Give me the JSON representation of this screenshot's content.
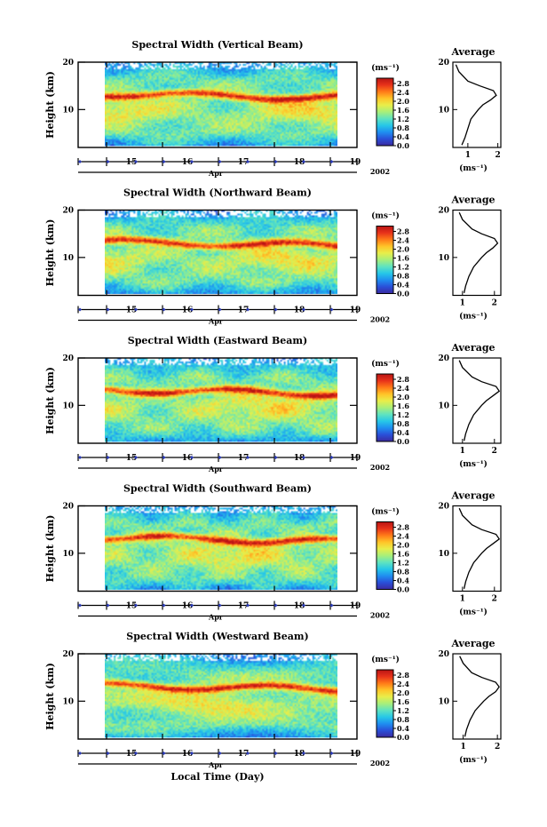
{
  "figure": {
    "xlabel": "Local Time (Day)",
    "colorbar_unit": "(ms⁻¹)",
    "avg_title": "Average",
    "avg_unit": "(ms⁻¹)",
    "month_label": "Apr",
    "year_label": "2002",
    "ylabel": "Height (km)",
    "colormap": [
      "#3b2aa0",
      "#2a4fd8",
      "#1f8ef0",
      "#26c7e8",
      "#5fe3c0",
      "#a8ef7a",
      "#e8ee4a",
      "#ffc428",
      "#ff7a18",
      "#e8321a",
      "#b81414"
    ]
  },
  "chart_data": [
    {
      "type": "heatmap",
      "title": "Spectral Width (Vertical Beam)",
      "ylabel": "Height (km)",
      "yticks": [
        10,
        20
      ],
      "ylim": [
        2,
        20
      ],
      "xticks": [
        "15",
        "16",
        "17",
        "18",
        "19"
      ],
      "colorbar": {
        "ticks": [
          "0.0",
          "0.4",
          "0.8",
          "1.2",
          "1.6",
          "2.0",
          "2.4",
          "2.8"
        ],
        "range": [
          0,
          2.8
        ]
      },
      "profile": {
        "xticks": [
          "1",
          "2"
        ],
        "xlim": [
          0.5,
          2.1
        ],
        "yticks": [
          "10",
          "20"
        ],
        "heights": [
          2.5,
          4,
          6,
          8,
          10,
          11,
          12,
          13,
          14,
          15,
          16,
          18,
          19.5
        ],
        "values": [
          0.8,
          0.9,
          1.0,
          1.1,
          1.35,
          1.5,
          1.75,
          1.95,
          1.85,
          1.4,
          1.0,
          0.7,
          0.6
        ]
      }
    },
    {
      "type": "heatmap",
      "title": "Spectral Width (Northward Beam)",
      "ylabel": "Height (km)",
      "yticks": [
        10,
        20
      ],
      "ylim": [
        2,
        20
      ],
      "xticks": [
        "15",
        "16",
        "17",
        "18",
        "19"
      ],
      "colorbar": {
        "ticks": [
          "0.0",
          "0.4",
          "0.8",
          "1.2",
          "1.6",
          "2.0",
          "2.4",
          "2.8"
        ],
        "range": [
          0,
          2.8
        ]
      },
      "profile": {
        "xticks": [
          "1",
          "2"
        ],
        "xlim": [
          0.7,
          2.2
        ],
        "yticks": [
          "10",
          "20"
        ],
        "heights": [
          2.5,
          4,
          6,
          8,
          10,
          11,
          12,
          13,
          14,
          15,
          16,
          18,
          19.5
        ],
        "values": [
          1.05,
          1.1,
          1.2,
          1.35,
          1.6,
          1.75,
          1.95,
          2.1,
          2.0,
          1.6,
          1.3,
          1.0,
          0.9
        ]
      }
    },
    {
      "type": "heatmap",
      "title": "Spectral Width (Eastward Beam)",
      "ylabel": "Height (km)",
      "yticks": [
        10,
        20
      ],
      "ylim": [
        2,
        20
      ],
      "xticks": [
        "15",
        "16",
        "17",
        "18",
        "19"
      ],
      "colorbar": {
        "ticks": [
          "0.0",
          "0.4",
          "0.8",
          "1.2",
          "1.6",
          "2.0",
          "2.4",
          "2.8"
        ],
        "range": [
          0,
          2.8
        ]
      },
      "profile": {
        "xticks": [
          "1",
          "2"
        ],
        "xlim": [
          0.7,
          2.2
        ],
        "yticks": [
          "10",
          "20"
        ],
        "heights": [
          2.5,
          4,
          6,
          8,
          10,
          11,
          12,
          13,
          14,
          15,
          16,
          18,
          19.5
        ],
        "values": [
          1.05,
          1.1,
          1.2,
          1.35,
          1.6,
          1.75,
          1.95,
          2.15,
          2.05,
          1.6,
          1.3,
          1.0,
          0.9
        ]
      }
    },
    {
      "type": "heatmap",
      "title": "Spectral Width (Southward Beam)",
      "ylabel": "Height (km)",
      "yticks": [
        10,
        20
      ],
      "ylim": [
        2,
        20
      ],
      "xticks": [
        "15",
        "16",
        "17",
        "18",
        "19"
      ],
      "colorbar": {
        "ticks": [
          "0.0",
          "0.4",
          "0.8",
          "1.2",
          "1.6",
          "2.0",
          "2.4",
          "2.8"
        ],
        "range": [
          0,
          2.8
        ]
      },
      "profile": {
        "xticks": [
          "1",
          "2"
        ],
        "xlim": [
          0.7,
          2.2
        ],
        "yticks": [
          "10",
          "20"
        ],
        "heights": [
          2.5,
          4,
          6,
          8,
          10,
          11,
          12,
          13,
          14,
          15,
          16,
          18,
          19.5
        ],
        "values": [
          1.05,
          1.1,
          1.2,
          1.35,
          1.6,
          1.75,
          1.95,
          2.15,
          2.05,
          1.6,
          1.3,
          1.0,
          0.9
        ]
      }
    },
    {
      "type": "heatmap",
      "title": "Spectral Width (Westward Beam)",
      "ylabel": "Height (km)",
      "yticks": [
        10,
        20
      ],
      "ylim": [
        2,
        20
      ],
      "xticks": [
        "15",
        "16",
        "17",
        "18",
        "19"
      ],
      "colorbar": {
        "ticks": [
          "0.0",
          "0.4",
          "0.8",
          "1.2",
          "1.6",
          "2.0",
          "2.4",
          "2.8"
        ],
        "range": [
          0,
          2.8
        ]
      },
      "profile": {
        "xticks": [
          "1",
          "2"
        ],
        "xlim": [
          0.7,
          2.1
        ],
        "yticks": [
          "10",
          "20"
        ],
        "heights": [
          2.5,
          4,
          6,
          8,
          10,
          11,
          12,
          13,
          14,
          15,
          16,
          18,
          19.5
        ],
        "values": [
          1.05,
          1.1,
          1.2,
          1.35,
          1.6,
          1.75,
          1.95,
          2.05,
          1.95,
          1.55,
          1.25,
          1.0,
          0.9
        ]
      }
    }
  ]
}
